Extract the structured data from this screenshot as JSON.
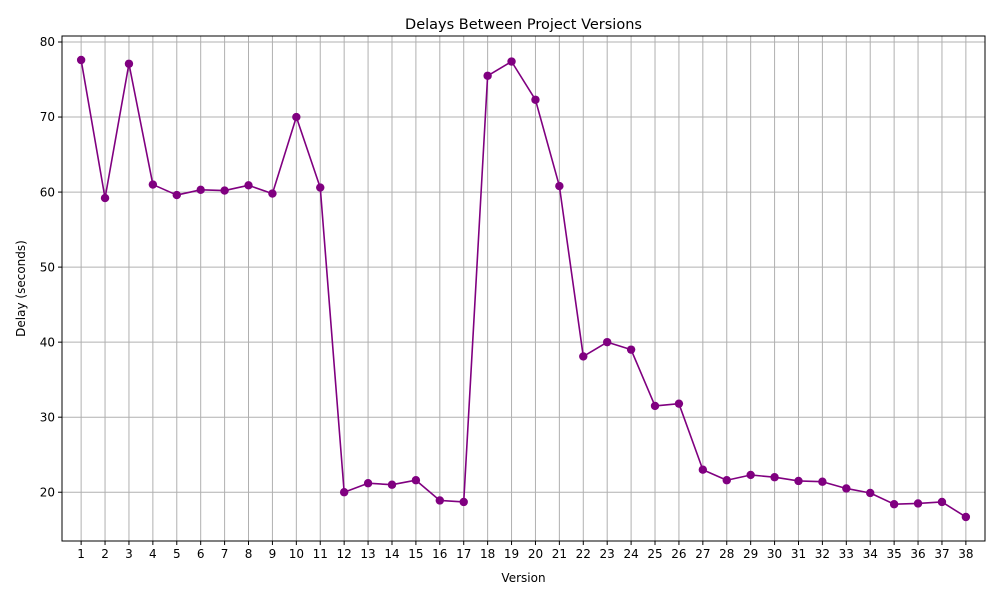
{
  "chart_data": {
    "type": "line",
    "title": "Delays Between Project Versions",
    "xlabel": "Version",
    "ylabel": "Delay (seconds)",
    "x": [
      1,
      2,
      3,
      4,
      5,
      6,
      7,
      8,
      9,
      10,
      11,
      12,
      13,
      14,
      15,
      16,
      17,
      18,
      19,
      20,
      21,
      22,
      23,
      24,
      25,
      26,
      27,
      28,
      29,
      30,
      31,
      32,
      33,
      34,
      35,
      36,
      37,
      38
    ],
    "y_ticks": [
      20,
      30,
      40,
      50,
      60,
      70,
      80
    ],
    "ylim": [
      13.5,
      80.8
    ],
    "xlim": [
      0.2,
      38.8
    ],
    "grid": true,
    "legend": "none",
    "series": [
      {
        "color": "#800080",
        "marker": "circle",
        "values": [
          77.6,
          59.2,
          77.1,
          61.0,
          59.6,
          60.3,
          60.2,
          60.9,
          59.8,
          70.0,
          60.6,
          20.0,
          21.2,
          21.0,
          21.6,
          18.9,
          18.7,
          75.5,
          77.4,
          72.3,
          60.8,
          38.1,
          40.0,
          39.0,
          31.5,
          31.8,
          23.0,
          21.6,
          22.3,
          22.0,
          21.5,
          21.4,
          20.5,
          19.9,
          18.4,
          18.5,
          18.7,
          16.7
        ]
      }
    ]
  }
}
